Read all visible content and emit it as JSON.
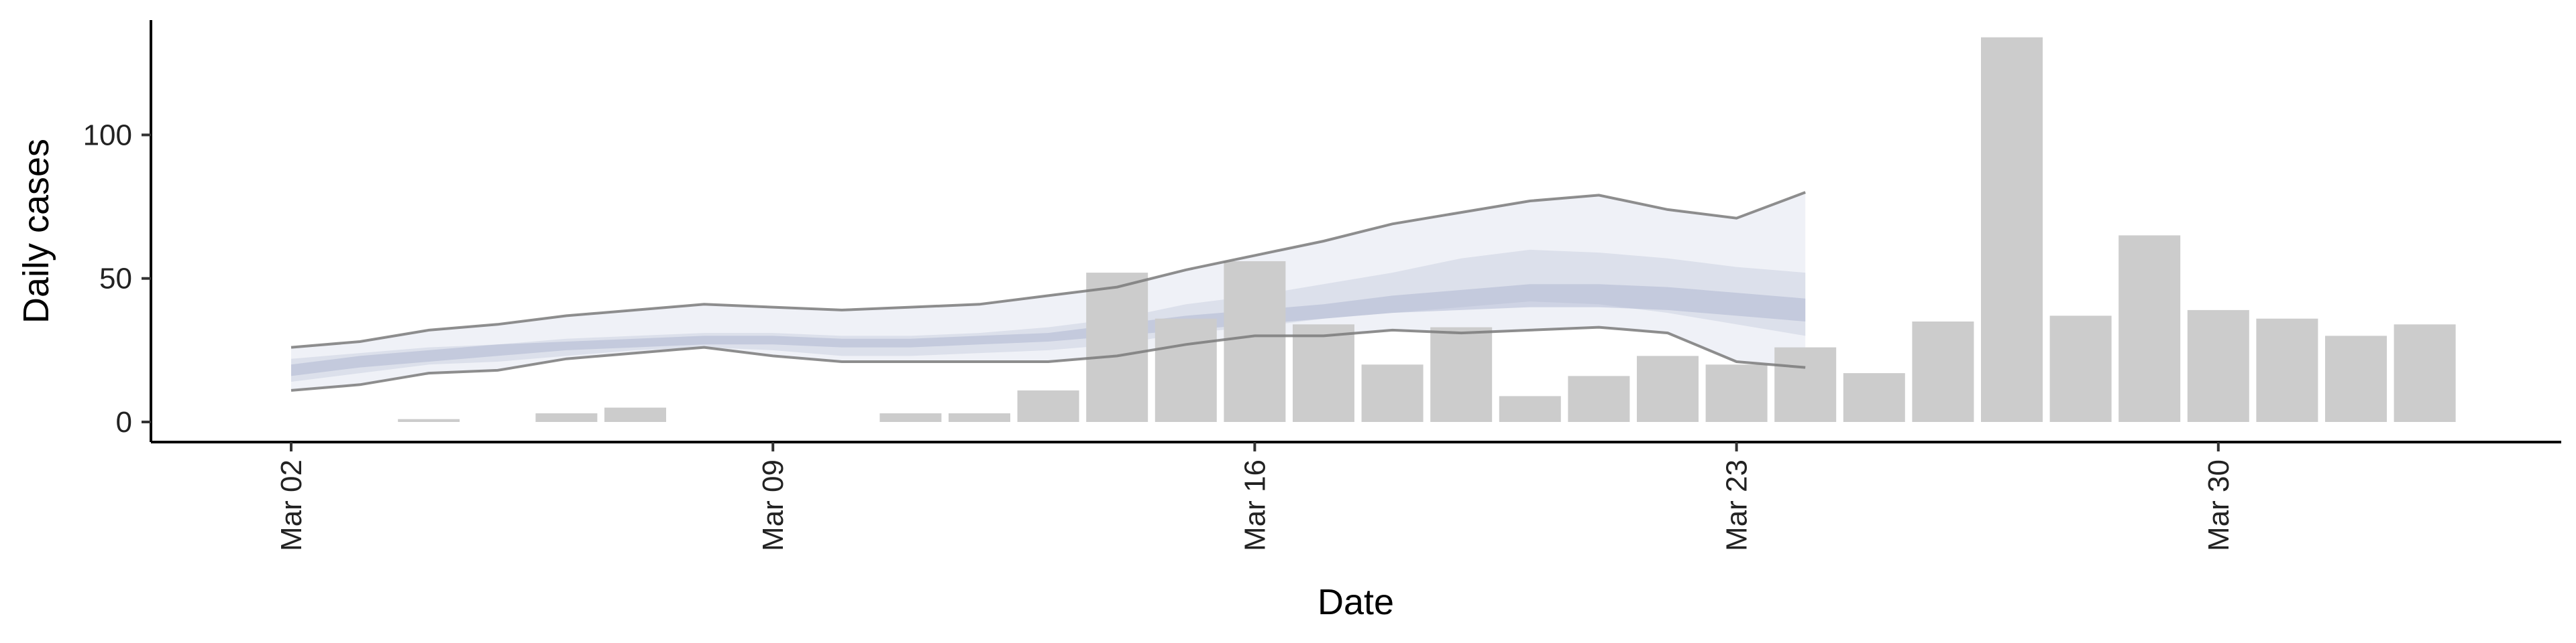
{
  "chart_data": {
    "type": "bar",
    "title": "",
    "xlabel": "Date",
    "ylabel": "Daily cases",
    "ylim": [
      -7,
      140
    ],
    "yticks": [
      0,
      50,
      100
    ],
    "x_start": "2020-03-02",
    "xticks": [
      {
        "date": "2020-03-02",
        "label": "Mar 02"
      },
      {
        "date": "2020-03-09",
        "label": "Mar 09"
      },
      {
        "date": "2020-03-16",
        "label": "Mar 16"
      },
      {
        "date": "2020-03-23",
        "label": "Mar 23"
      },
      {
        "date": "2020-03-30",
        "label": "Mar 30"
      }
    ],
    "grid": false,
    "bars": {
      "name": "Reported cases",
      "color": "#cccccc",
      "dates": [
        "2020-03-04",
        "2020-03-06",
        "2020-03-07",
        "2020-03-11",
        "2020-03-12",
        "2020-03-13",
        "2020-03-14",
        "2020-03-15",
        "2020-03-16",
        "2020-03-17",
        "2020-03-18",
        "2020-03-19",
        "2020-03-20",
        "2020-03-21",
        "2020-03-22",
        "2020-03-23",
        "2020-03-24",
        "2020-03-25",
        "2020-03-26",
        "2020-03-27",
        "2020-03-28",
        "2020-03-29",
        "2020-03-30",
        "2020-03-31",
        "2020-04-01",
        "2020-04-02"
      ],
      "values": [
        1,
        3,
        5,
        3,
        3,
        11,
        52,
        36,
        56,
        34,
        20,
        33,
        9,
        16,
        23,
        20,
        26,
        17,
        35,
        134,
        37,
        65,
        39,
        36,
        30,
        34
      ]
    },
    "estimate": {
      "dates": [
        "2020-03-02",
        "2020-03-03",
        "2020-03-04",
        "2020-03-05",
        "2020-03-06",
        "2020-03-07",
        "2020-03-08",
        "2020-03-09",
        "2020-03-10",
        "2020-03-11",
        "2020-03-12",
        "2020-03-13",
        "2020-03-14",
        "2020-03-15",
        "2020-03-16",
        "2020-03-17",
        "2020-03-18",
        "2020-03-19",
        "2020-03-20",
        "2020-03-21",
        "2020-03-22",
        "2020-03-23",
        "2020-03-24"
      ],
      "outer_upper": [
        26,
        28,
        32,
        34,
        37,
        39,
        41,
        40,
        39,
        40,
        41,
        44,
        47,
        53,
        58,
        63,
        69,
        73,
        77,
        79,
        74,
        71,
        80
      ],
      "outer_lower": [
        11,
        13,
        17,
        18,
        22,
        24,
        26,
        23,
        21,
        21,
        21,
        21,
        23,
        27,
        30,
        30,
        32,
        31,
        32,
        33,
        31,
        21,
        19
      ],
      "mid_upper": [
        22,
        24,
        26,
        27,
        29,
        30,
        31,
        31,
        30,
        30,
        31,
        33,
        36,
        41,
        44,
        48,
        52,
        57,
        60,
        59,
        57,
        54,
        52
      ],
      "mid_lower": [
        14,
        17,
        20,
        21,
        23,
        25,
        26,
        25,
        23,
        23,
        24,
        25,
        27,
        31,
        33,
        36,
        38,
        40,
        42,
        41,
        38,
        34,
        30
      ],
      "inner_upper": [
        20,
        23,
        25,
        27,
        28,
        29,
        30,
        30,
        29,
        29,
        30,
        31,
        34,
        37,
        39,
        41,
        44,
        46,
        48,
        48,
        47,
        45,
        43
      ],
      "inner_lower": [
        16,
        19,
        21,
        23,
        25,
        26,
        27,
        27,
        26,
        26,
        27,
        28,
        30,
        32,
        34,
        36,
        38,
        39,
        40,
        40,
        39,
        37,
        35
      ],
      "band_color_outer": "#e8ebf3",
      "band_color_mid": "#c9cfe0",
      "band_color_inner": "#a6afcb",
      "line_color": "#7a7a7a"
    }
  }
}
